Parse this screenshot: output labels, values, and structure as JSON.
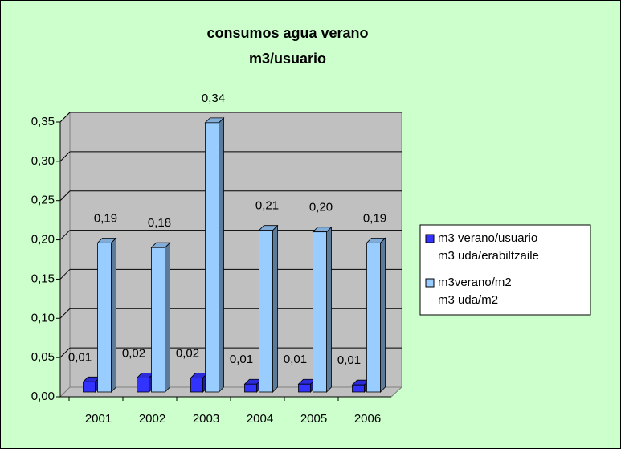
{
  "chart_data": {
    "type": "bar3d",
    "title": [
      "consumos agua verano",
      "m3/usuario"
    ],
    "categories": [
      "2001",
      "2002",
      "2003",
      "2004",
      "2005",
      "2006"
    ],
    "series": [
      {
        "name": [
          "m3 verano/usuario",
          "m3 uda/erabiltzaile"
        ],
        "color": "#3333ff",
        "values": [
          0.013,
          0.018,
          0.018,
          0.01,
          0.01,
          0.009
        ],
        "value_labels": [
          "0,01",
          "0,02",
          "0,02",
          "0,01",
          "0,01",
          "0,01"
        ]
      },
      {
        "name": [
          "m3verano/m2",
          "m3 uda/m2"
        ],
        "color": "#99ccff",
        "values": [
          0.19,
          0.184,
          0.343,
          0.206,
          0.204,
          0.19
        ],
        "value_labels": [
          "0,19",
          "0,18",
          "0,34",
          "0,21",
          "0,20",
          "0,19"
        ]
      }
    ],
    "ylim": [
      0,
      0.35
    ],
    "yticks": [
      {
        "value": 0,
        "label": "0,00"
      },
      {
        "value": 0.05,
        "label": "0,05"
      },
      {
        "value": 0.1,
        "label": "0,10"
      },
      {
        "value": 0.15,
        "label": "0,15"
      },
      {
        "value": 0.2,
        "label": "0,20"
      },
      {
        "value": 0.25,
        "label": "0,25"
      },
      {
        "value": 0.3,
        "label": "0,30"
      },
      {
        "value": 0.35,
        "label": "0,35"
      }
    ],
    "grid": true,
    "legend": "right"
  }
}
